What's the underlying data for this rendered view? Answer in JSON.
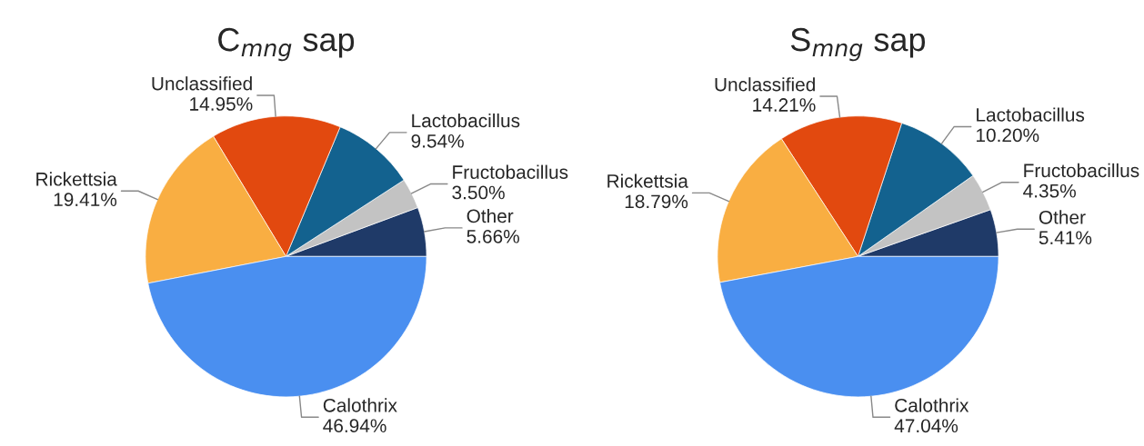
{
  "chart_data": [
    {
      "type": "pie",
      "title": "C$_{mng}$ sap",
      "categories": [
        "Other",
        "Fructobacillus",
        "Lactobacillus",
        "Unclassified",
        "Rickettsia",
        "Calothrix"
      ],
      "values": [
        5.66,
        3.5,
        9.54,
        14.95,
        19.41,
        46.94
      ],
      "value_labels": [
        "5.66%",
        "3.50%",
        "9.54%",
        "14.95%",
        "19.41%",
        "46.94%"
      ],
      "colors": [
        "#1f3a68",
        "#c3c3c3",
        "#13628f",
        "#e2490f",
        "#f9ae42",
        "#4a8ff0"
      ]
    },
    {
      "type": "pie",
      "title": "S$_{mng}$ sap",
      "categories": [
        "Other",
        "Fructobacillus",
        "Lactobacillus",
        "Unclassified",
        "Rickettsia",
        "Calothrix"
      ],
      "values": [
        5.41,
        4.35,
        10.2,
        14.21,
        18.79,
        47.04
      ],
      "value_labels": [
        "5.41%",
        "4.35%",
        "10.20%",
        "14.21%",
        "18.79%",
        "47.04%"
      ],
      "colors": [
        "#1f3a68",
        "#c3c3c3",
        "#13628f",
        "#e2490f",
        "#f9ae42",
        "#4a8ff0"
      ]
    }
  ]
}
